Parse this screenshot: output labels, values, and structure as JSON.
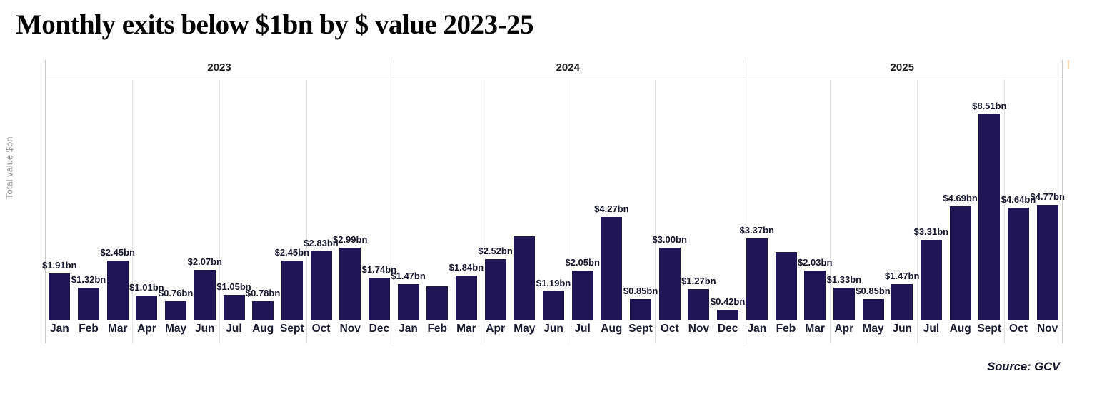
{
  "chart_data": {
    "type": "bar",
    "title": "Monthly exits below $1bn by $ value 2023-25",
    "ylabel": "Total value $bn",
    "source": "Source: GCV",
    "ylim": [
      0,
      10
    ],
    "grid": "vertical-quarter-separators",
    "legend_position": "none",
    "bar_color": "#1f1557",
    "groups": [
      {
        "year": "2023",
        "months": [
          "Jan",
          "Feb",
          "Mar",
          "Apr",
          "May",
          "Jun",
          "Jul",
          "Aug",
          "Sept",
          "Oct",
          "Nov",
          "Dec"
        ],
        "values": [
          1.91,
          1.32,
          2.45,
          1.01,
          0.76,
          2.07,
          1.05,
          0.78,
          2.45,
          2.83,
          2.99,
          1.74
        ],
        "labels": [
          "$1.91bn",
          "$1.32bn",
          "$2.45bn",
          "$1.01bn",
          "$0.76bn",
          "$2.07bn",
          "$1.05bn",
          "$0.78bn",
          "$2.45bn",
          "$2.83bn",
          "$2.99bn",
          "$1.74bn"
        ]
      },
      {
        "year": "2024",
        "months": [
          "Jan",
          "Feb",
          "Mar",
          "Apr",
          "May",
          "Jun",
          "Jul",
          "Aug",
          "Sept",
          "Oct",
          "Nov",
          "Dec"
        ],
        "values": [
          1.47,
          1.4,
          1.84,
          2.52,
          3.45,
          1.19,
          2.05,
          4.27,
          0.85,
          3.0,
          1.27,
          0.42
        ],
        "labels": [
          "$1.47bn",
          null,
          "$1.84bn",
          "$2.52bn",
          null,
          "$1.19bn",
          "$2.05bn",
          "$4.27bn",
          "$0.85bn",
          "$3.00bn",
          "$1.27bn",
          "$0.42bn"
        ]
      },
      {
        "year": "2025",
        "months": [
          "Jan",
          "Feb",
          "Mar",
          "Apr",
          "May",
          "Jun",
          "Jul",
          "Aug",
          "Sept",
          "Oct",
          "Nov"
        ],
        "values": [
          3.37,
          2.8,
          2.03,
          1.33,
          0.85,
          1.47,
          3.31,
          4.69,
          8.51,
          4.64,
          4.77
        ],
        "labels": [
          "$3.37bn",
          null,
          "$2.03bn",
          "$1.33bn",
          "$0.85bn",
          "$1.47bn",
          "$3.31bn",
          "$4.69bn",
          "$8.51bn",
          "$4.64bn",
          "$4.77bn"
        ]
      }
    ]
  }
}
